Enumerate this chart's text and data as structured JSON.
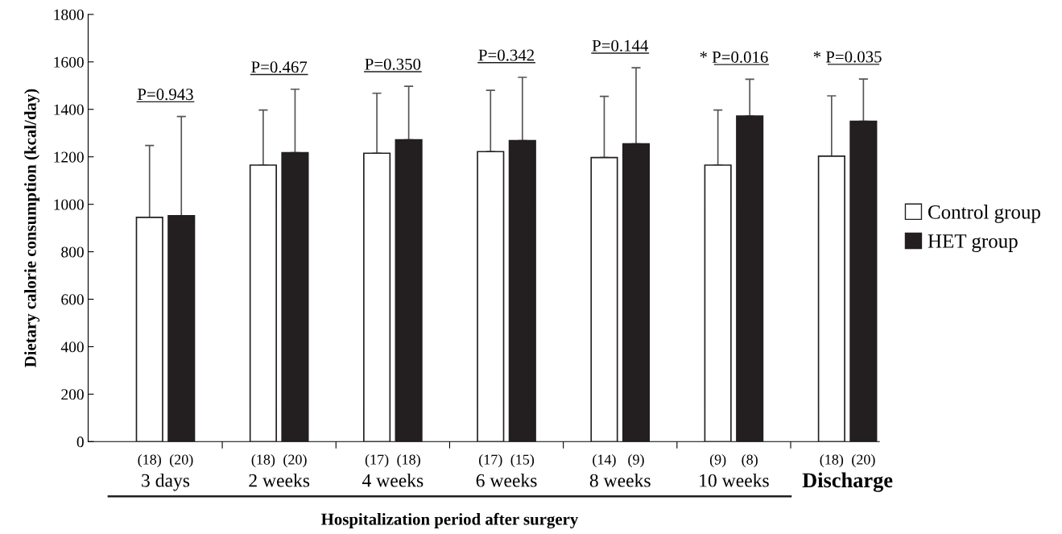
{
  "chart_data": {
    "type": "bar",
    "xlabel": "Hospitalization period after surgery",
    "ylabel": "Dietary calorie consumption (kcal/day)",
    "categories": [
      "3 days",
      "2 weeks",
      "4 weeks",
      "6 weeks",
      "8 weeks",
      "10 weeks",
      "Discharge"
    ],
    "series": [
      {
        "name": "Control group",
        "color": "#ffffff",
        "values": [
          945,
          1165,
          1215,
          1222,
          1197,
          1165,
          1203
        ],
        "errors": [
          [
            945,
            1248
          ],
          [
            1165,
            1397
          ],
          [
            1215,
            1468
          ],
          [
            1222,
            1480
          ],
          [
            1197,
            1455
          ],
          [
            1165,
            1397
          ],
          [
            1203,
            1457
          ]
        ]
      },
      {
        "name": "HET group",
        "color": "#231f20",
        "values": [
          952,
          1217,
          1272,
          1268,
          1255,
          1372,
          1350
        ],
        "errors": [
          [
            952,
            1370
          ],
          [
            1217,
            1485
          ],
          [
            1272,
            1497
          ],
          [
            1268,
            1535
          ],
          [
            1255,
            1575
          ],
          [
            1372,
            1527
          ],
          [
            1350,
            1528
          ]
        ]
      }
    ],
    "ylim": [
      0,
      1800
    ],
    "yticks": [
      0,
      200,
      400,
      600,
      800,
      1000,
      1200,
      1400,
      1600,
      1800
    ],
    "grid": false,
    "legend": "right",
    "annotations": [
      "(18)",
      "(20)",
      "(18)",
      "(20)",
      "(17)",
      "(18)",
      "(17)",
      "(15)",
      "(14)",
      "(9)",
      "(9)",
      "(8)",
      "(18)",
      "(20)",
      "P=0.943",
      "P=0.467",
      "P=0.350",
      "P=0.342",
      "P=0.144",
      "* P=0.016",
      "* P=0.035"
    ]
  }
}
